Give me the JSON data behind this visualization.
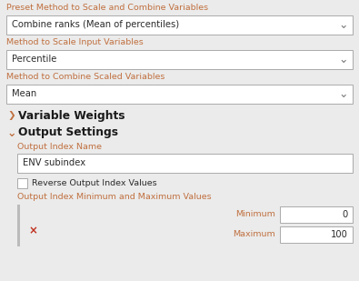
{
  "bg_color": "#ebebeb",
  "label_color": "#c07040",
  "text_color": "#2b2b2b",
  "dropdown_border": "#aaaaaa",
  "section_text_color": "#1a1a1a",
  "preset_label": "Preset Method to Scale and Combine Variables",
  "preset_value": "Combine ranks (Mean of percentiles)",
  "scale_label": "Method to Scale Input Variables",
  "scale_value": "Percentile",
  "combine_label": "Method to Combine Scaled Variables",
  "combine_value": "Mean",
  "var_weights_label": "Variable Weights",
  "output_settings_label": "Output Settings",
  "output_index_name_label": "Output Index Name",
  "output_index_value": "ENV subindex",
  "reverse_label": "Reverse Output Index Values",
  "min_max_label": "Output Index Minimum and Maximum Values",
  "minimum_label": "Minimum",
  "maximum_label": "Maximum",
  "min_value": "0",
  "max_value": "100",
  "figw": 3.95,
  "figh": 3.09,
  "dpi": 100
}
